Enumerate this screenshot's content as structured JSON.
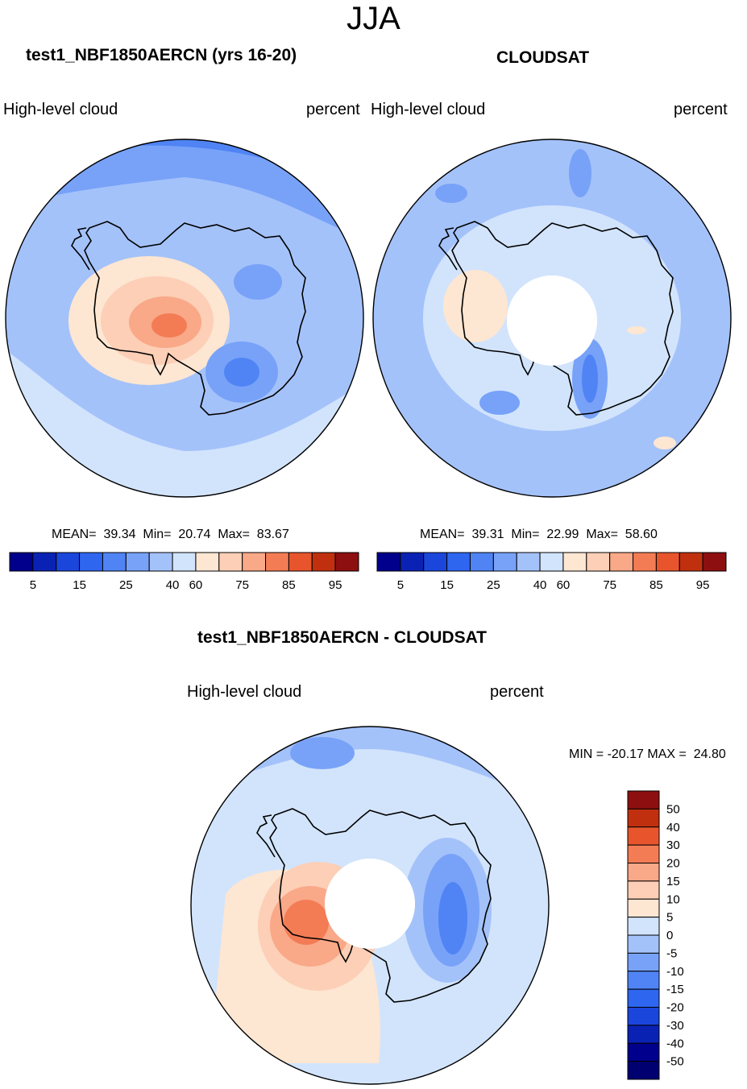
{
  "season": "JJA",
  "panel_left": {
    "title": "test1_NBF1850AERCN (yrs 16-20)",
    "variable": "High-level cloud",
    "units": "percent",
    "stats": "MEAN=  39.34  Min=  20.74  Max=  83.67"
  },
  "panel_right": {
    "title": "CLOUDSAT",
    "variable": "High-level cloud",
    "units": "percent",
    "stats": "MEAN=  39.31  Min=  22.99  Max=  58.60"
  },
  "panel_diff": {
    "title": "test1_NBF1850AERCN - CLOUDSAT",
    "variable": "High-level cloud",
    "units": "percent",
    "stats": "MIN = -20.17 MAX =  24.80"
  },
  "colorbar_abs": {
    "ticks": [
      "5",
      "15",
      "25",
      "40",
      "60",
      "75",
      "85",
      "95"
    ],
    "colors": [
      "#00008c",
      "#0a22b4",
      "#1a46dc",
      "#2e66f0",
      "#5084f5",
      "#78a2f8",
      "#a4c2fa",
      "#d2e4fc",
      "#fde6d2",
      "#fccfb6",
      "#f9a888",
      "#f37c55",
      "#e8552c",
      "#c0300f",
      "#8e0f0f"
    ]
  },
  "colorbar_diff": {
    "ticks": [
      "50",
      "40",
      "30",
      "20",
      "15",
      "10",
      "5",
      "0",
      "-5",
      "-10",
      "-15",
      "-20",
      "-30",
      "-40",
      "-50"
    ],
    "colors": [
      "#8e0f0f",
      "#c0300f",
      "#e8552c",
      "#f37c55",
      "#f9a888",
      "#fccfb6",
      "#fde6d2",
      "#d2e4fc",
      "#a4c2fa",
      "#78a2f8",
      "#5084f5",
      "#2e66f0",
      "#1a46dc",
      "#0a22b4",
      "#00008c",
      "#000070"
    ]
  }
}
